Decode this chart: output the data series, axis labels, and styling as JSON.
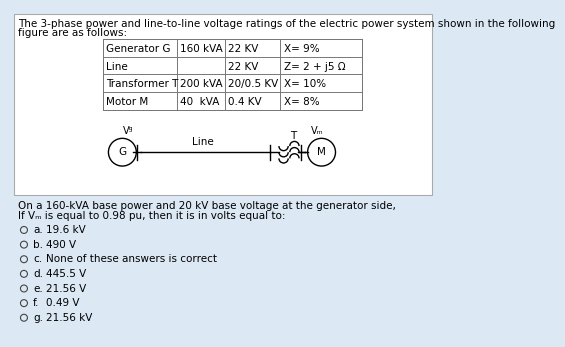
{
  "title_line1": "The 3-phase power and line-to-line voltage ratings of the electric power system shown in the following",
  "title_line2": "figure are as follows:",
  "table_rows": [
    [
      "Generator G",
      "160 kVA",
      "22 KV",
      "X= 9%"
    ],
    [
      "Line",
      "",
      "22 KV",
      "Z= 2 + j5 Ω"
    ],
    [
      "Transformer T",
      "200 kVA",
      "20/0.5 KV",
      "X= 10%"
    ],
    [
      "Motor M",
      "40  kVA",
      "0.4 KV",
      "X= 8%"
    ]
  ],
  "base_text": "On a 160-kVA base power and 20 kV base voltage at the generator side,",
  "question_text": "If Vₘ is equal to 0.98 pu, then it is in volts equal to:",
  "options": [
    [
      "a.",
      "19.6 kV"
    ],
    [
      "b.",
      "490 V"
    ],
    [
      "c.",
      "None of these answers is correct"
    ],
    [
      "d.",
      "445.5 V"
    ],
    [
      "e.",
      "21.56 V"
    ],
    [
      "f.",
      "0.49 V"
    ],
    [
      "g.",
      "21.56 kV"
    ]
  ],
  "bg_color": "#dce9f5",
  "white_color": "#ffffff",
  "text_color": "#000000",
  "grid_color": "#777777",
  "fs": 7.5,
  "fs_small": 7.0
}
